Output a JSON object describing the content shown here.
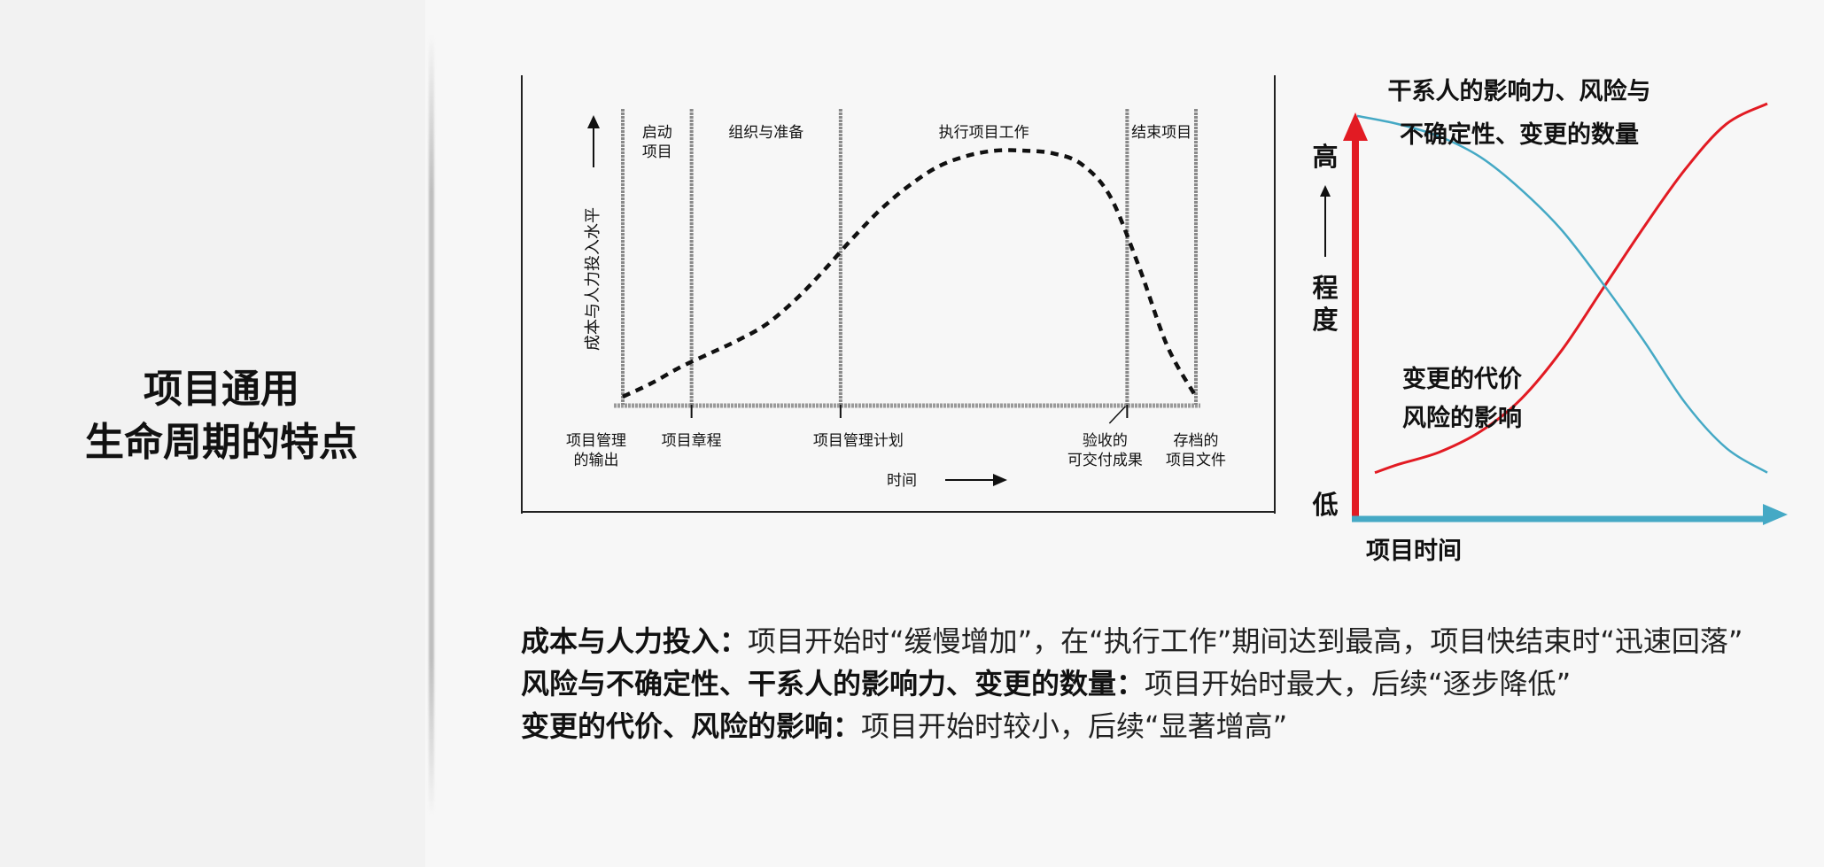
{
  "slide": {
    "title_line1": "项目通用",
    "title_line2": "生命周期的特点"
  },
  "chart_data": [
    {
      "type": "line",
      "ylabel": "成本与人力投入水平",
      "xlabel": "时间",
      "phases": [
        "启动项目",
        "组织与准备",
        "执行项目工作",
        "结束项目"
      ],
      "phase_label_lines": [
        [
          "启动",
          "项目"
        ],
        [
          "组织与准备"
        ],
        [
          "执行项目工作"
        ],
        [
          "结束项目"
        ]
      ],
      "milestones": [
        [
          "项目管理",
          "的输出"
        ],
        [
          "项目章程"
        ],
        [
          "项目管理计划"
        ],
        [
          "验收的",
          "可交付成果"
        ],
        [
          "存档的",
          "项目文件"
        ]
      ],
      "series": [
        {
          "values_note": "",
          "x": [
            0,
            5,
            10,
            15,
            20,
            25,
            30,
            35,
            40,
            45,
            50,
            55,
            60,
            65,
            70,
            75,
            80,
            85,
            90,
            95,
            100
          ],
          "y": [
            3,
            8,
            14,
            19,
            24,
            30,
            39,
            50,
            62,
            73,
            82,
            89,
            93,
            95,
            95,
            94,
            90,
            78,
            52,
            22,
            3
          ]
        }
      ],
      "phase_boundaries_x": [
        0,
        12,
        38,
        88,
        100
      ]
    },
    {
      "type": "line",
      "title_line1": "干系人的影响力、风险与",
      "title_line2": "不确定性、变更的数量",
      "ylabel_high": "高",
      "ylabel_mid1": "程",
      "ylabel_mid2": "度",
      "ylabel_low": "低",
      "xlabel": "项目时间",
      "series": [
        {
          "name": "变更的代价 风险的影响",
          "label_line1": "变更的代价",
          "label_line2": "风险的影响",
          "color": "#e21b23",
          "x": [
            0,
            10,
            20,
            30,
            40,
            50,
            60,
            70,
            80,
            90,
            100
          ],
          "y": [
            10,
            12,
            15,
            20,
            28,
            40,
            55,
            70,
            84,
            95,
            100
          ]
        },
        {
          "name": "干系人的影响力、风险与不确定性、变更的数量",
          "color": "#45a9c5",
          "x": [
            0,
            10,
            20,
            30,
            40,
            50,
            60,
            70,
            80,
            90,
            100
          ],
          "y": [
            97,
            95,
            92,
            87,
            79,
            69,
            56,
            42,
            27,
            16,
            10
          ]
        }
      ],
      "axis_y_color": "#e21b23",
      "axis_x_color": "#45a9c5",
      "ylim": [
        0,
        100
      ]
    }
  ],
  "notes": [
    {
      "label": "成本与人力投入：",
      "text": "项目开始时“缓慢增加”，在“执行工作”期间达到最高，项目快结束时“迅速回落”"
    },
    {
      "label": "风险与不确定性、干系人的影响力、变更的数量：",
      "text": "项目开始时最大，后续“逐步降低”"
    },
    {
      "label": "变更的代价、风险的影响：",
      "text": "项目开始时较小，后续“显著增高”"
    }
  ]
}
